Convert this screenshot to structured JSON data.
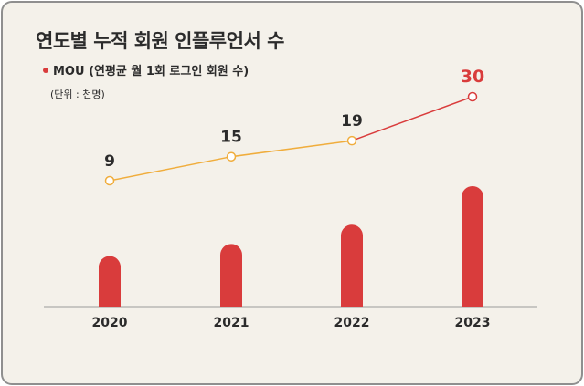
{
  "chart_data": {
    "type": "bar+line",
    "title": "연도별 누적 회원 인플루언서 수",
    "legend": [
      {
        "label": "MOU (연평균 월 1회 로그인 회원 수)",
        "color": "#d93c3c"
      }
    ],
    "unit": "(단위 : 천명)",
    "categories": [
      "2020",
      "2021",
      "2022",
      "2023"
    ],
    "bars": {
      "relative_values": [
        0.42,
        0.52,
        0.68,
        1.0
      ],
      "color": "#d93c3c"
    },
    "line": {
      "name": "MOU (연평균 월 1회 로그인 회원 수)",
      "values": [
        9,
        15,
        19,
        30
      ],
      "labels": [
        "9",
        "15",
        "19",
        "30"
      ],
      "color": "#f0ad3c",
      "highlight_color": "#d93c3c"
    },
    "grid": false,
    "legend_placement": "top-left"
  }
}
